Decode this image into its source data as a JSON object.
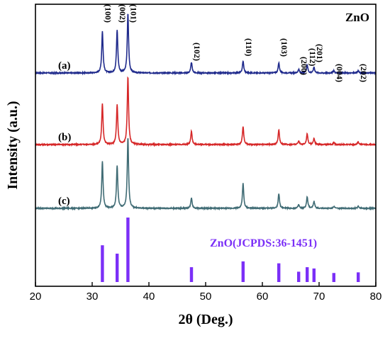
{
  "chart_data": {
    "type": "line",
    "xlabel": "2θ (Deg.)",
    "ylabel": "Intensity (a.u.)",
    "xlim": [
      20,
      80
    ],
    "x_ticks": [
      "20",
      "30",
      "40",
      "50",
      "60",
      "70",
      "80"
    ],
    "corner_label": "ZnO",
    "reference": {
      "label": "ZnO(JCPDS:36-1451)",
      "color": "#7b2ff7",
      "positions": [
        31.8,
        34.4,
        36.3,
        47.5,
        56.6,
        62.9,
        66.4,
        67.9,
        69.1,
        72.6,
        76.9
      ],
      "intensities": [
        57,
        44,
        100,
        23,
        32,
        29,
        16,
        23,
        21,
        14,
        15
      ]
    },
    "peaks": [
      {
        "x": 31.8,
        "label": "(100)"
      },
      {
        "x": 34.4,
        "label": "(002)"
      },
      {
        "x": 36.3,
        "label": "(101)"
      },
      {
        "x": 47.5,
        "label": "(102)"
      },
      {
        "x": 56.6,
        "label": "(110)"
      },
      {
        "x": 62.9,
        "label": "(103)"
      },
      {
        "x": 66.4,
        "label": "(200)"
      },
      {
        "x": 67.9,
        "label": "(112)"
      },
      {
        "x": 69.1,
        "label": "(201)"
      },
      {
        "x": 72.6,
        "label": "(004)"
      },
      {
        "x": 76.9,
        "label": "(202)"
      }
    ],
    "series": [
      {
        "label": "(a)",
        "color": "#1f2a8c",
        "intensities": [
          70,
          72,
          100,
          18,
          20,
          17,
          6,
          14,
          10,
          4,
          4
        ]
      },
      {
        "label": "(b)",
        "color": "#d62728",
        "intensities": [
          60,
          58,
          100,
          20,
          27,
          22,
          5,
          16,
          9,
          3,
          4
        ]
      },
      {
        "label": "(c)",
        "color": "#3f6b74",
        "intensities": [
          66,
          60,
          100,
          15,
          35,
          21,
          5,
          16,
          10,
          3,
          3
        ]
      }
    ]
  }
}
